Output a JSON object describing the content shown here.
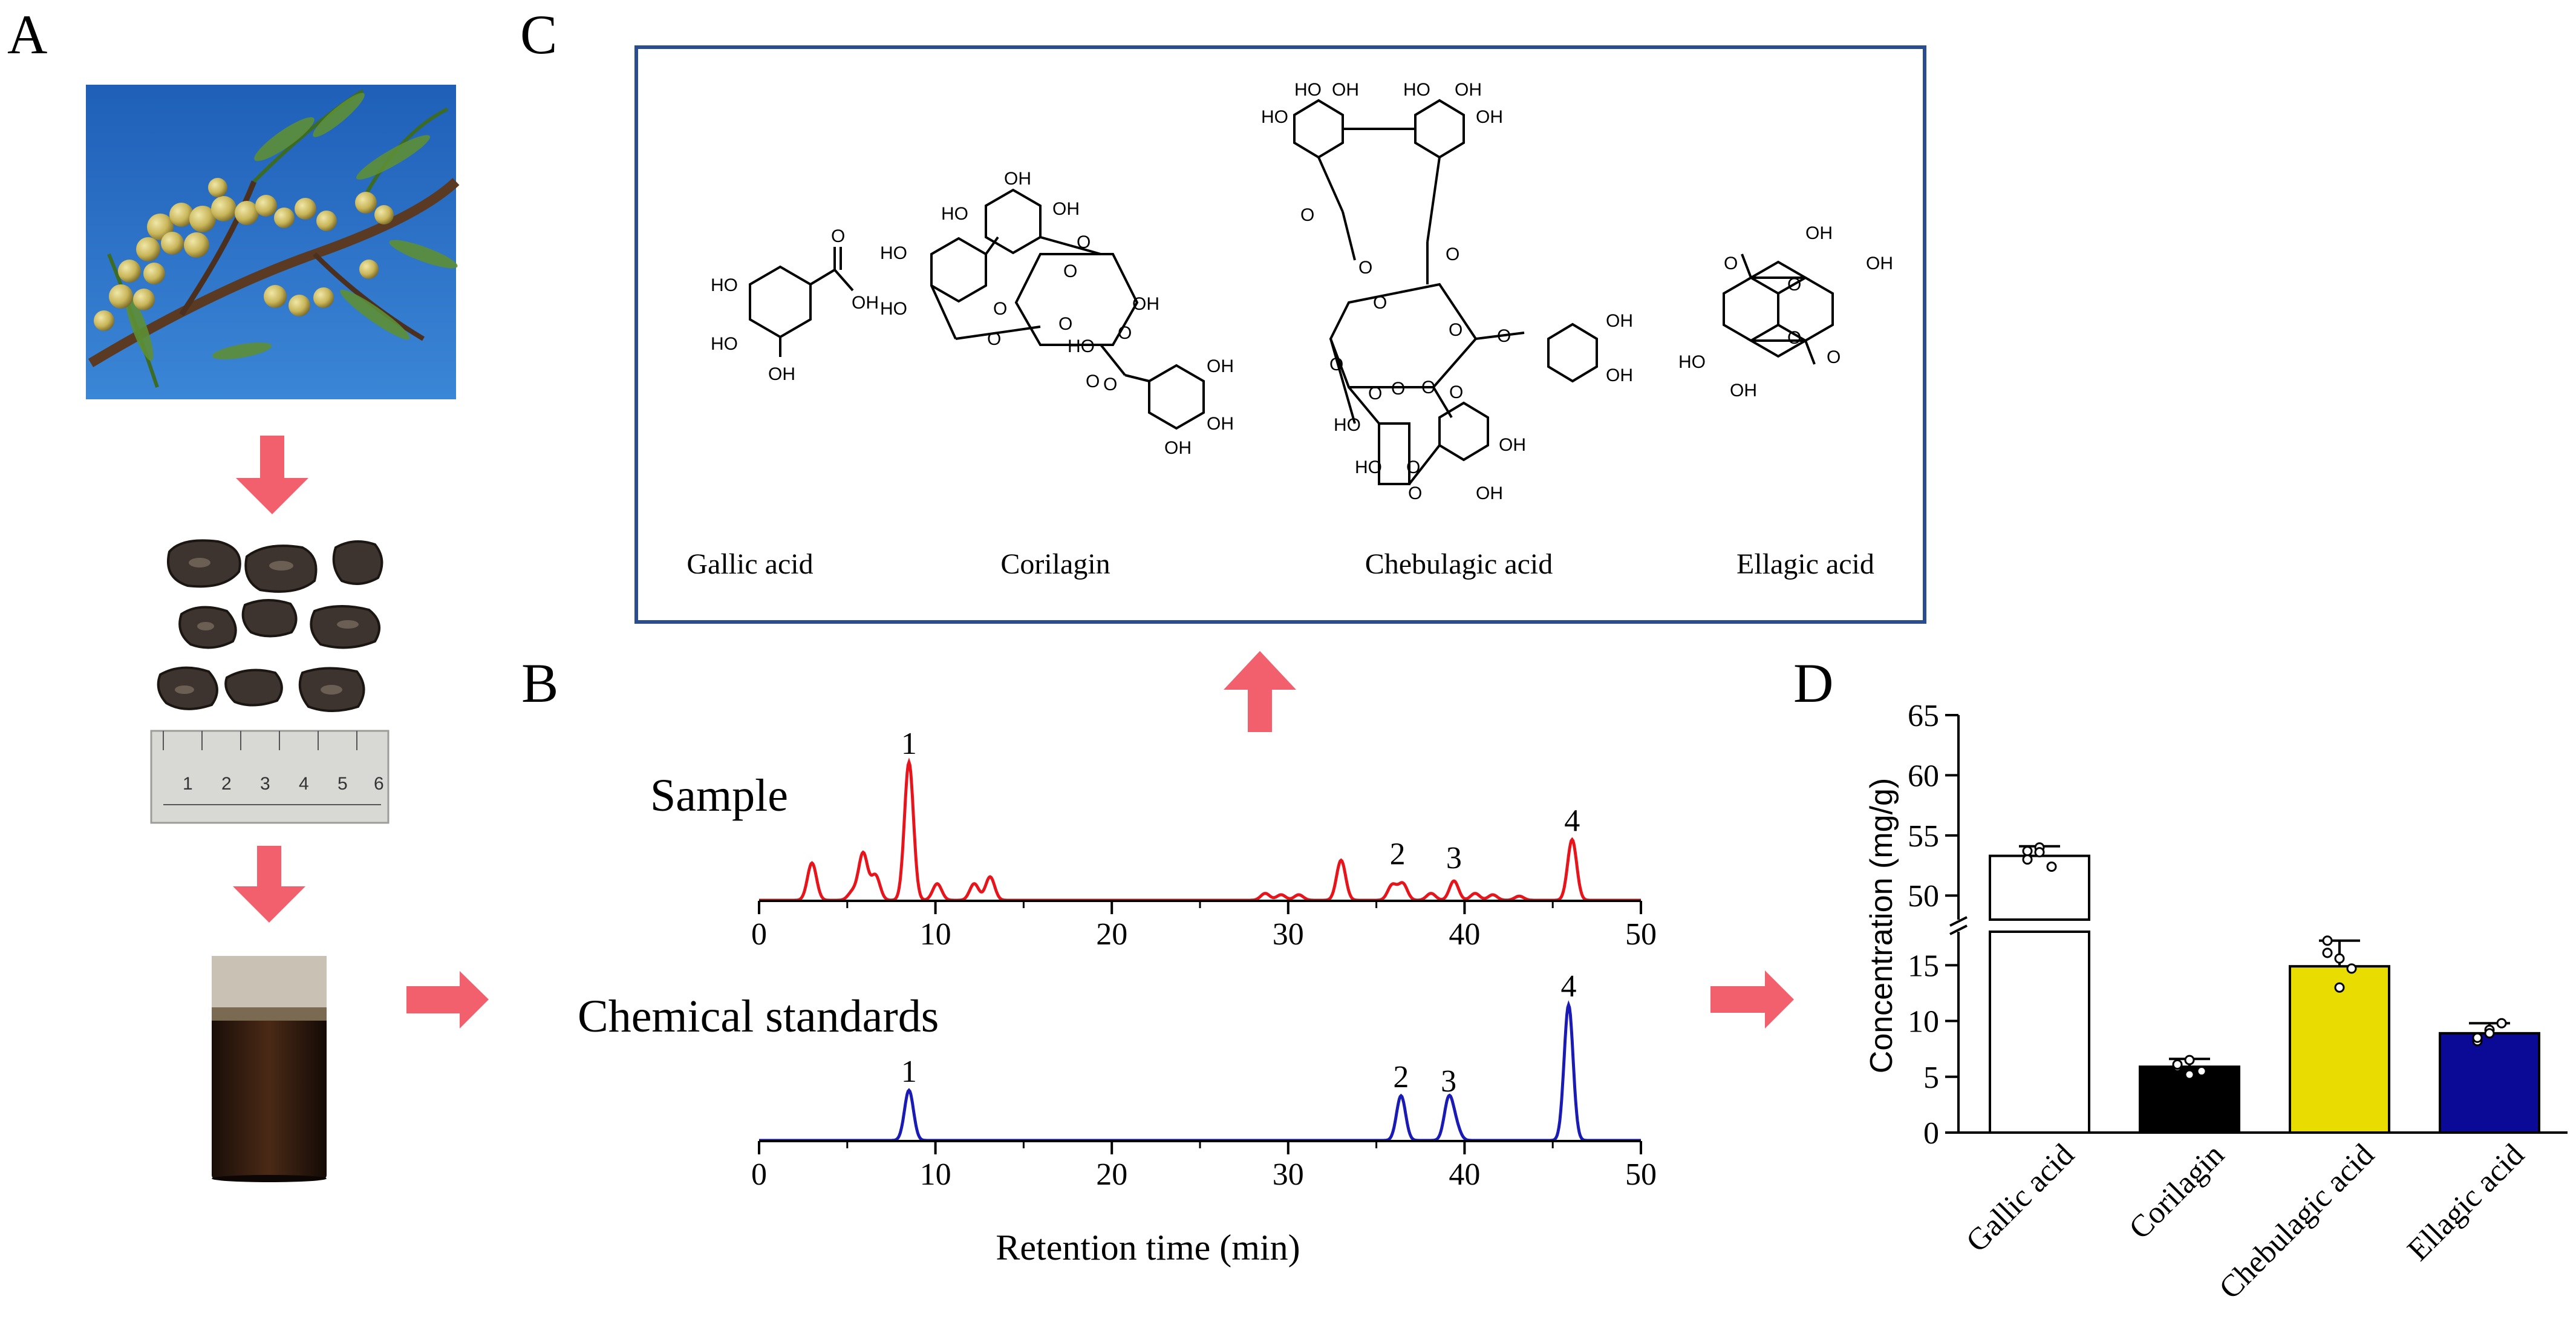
{
  "panels": {
    "a": {
      "label": "A"
    },
    "b": {
      "label": "B"
    },
    "c": {
      "label": "C"
    },
    "d": {
      "label": "D"
    }
  },
  "compounds": [
    {
      "name": "Gallic acid"
    },
    {
      "name": "Corilagin"
    },
    {
      "name": "Chebulagic acid"
    },
    {
      "name": "Ellagic acid"
    }
  ],
  "structure_labels": {
    "gallic": [
      "HO",
      "HO",
      "OH",
      "OH",
      "O"
    ],
    "corilagin": [
      "OH",
      "HO",
      "OH",
      "HO",
      "HO",
      "O",
      "O",
      "O",
      "O",
      "O",
      "OH",
      "HO",
      "O",
      "O",
      "O",
      "OH",
      "OH",
      "OH"
    ],
    "chebulagic": [
      "HO",
      "OH",
      "HO",
      "OH",
      "HO",
      "OH",
      "O",
      "O",
      "O",
      "O",
      "O",
      "O",
      "O",
      "O",
      "O",
      "HO",
      "O",
      "O",
      "OH",
      "OH",
      "HO",
      "O",
      "O",
      "OH",
      "OH"
    ],
    "ellagic": [
      "OH",
      "O",
      "OH",
      "O",
      "O",
      "HO",
      "O",
      "OH"
    ]
  },
  "chromatogram": {
    "sample": {
      "title": "Sample",
      "color": "#e8141c",
      "peaks": [
        {
          "time": 3.0,
          "height": 0.27
        },
        {
          "time": 5.3,
          "height": 0.06
        },
        {
          "time": 5.9,
          "height": 0.34
        },
        {
          "time": 6.6,
          "height": 0.18
        },
        {
          "time": 8.5,
          "height": 1.0
        },
        {
          "time": 10.1,
          "height": 0.12
        },
        {
          "time": 12.2,
          "height": 0.12
        },
        {
          "time": 13.1,
          "height": 0.17
        },
        {
          "time": 28.7,
          "height": 0.05
        },
        {
          "time": 29.6,
          "height": 0.04
        },
        {
          "time": 30.6,
          "height": 0.04
        },
        {
          "time": 33.0,
          "height": 0.29
        },
        {
          "time": 35.9,
          "height": 0.11
        },
        {
          "time": 36.5,
          "height": 0.12
        },
        {
          "time": 38.1,
          "height": 0.05
        },
        {
          "time": 39.4,
          "height": 0.14
        },
        {
          "time": 40.6,
          "height": 0.05
        },
        {
          "time": 41.6,
          "height": 0.04
        },
        {
          "time": 43.1,
          "height": 0.03
        },
        {
          "time": 46.1,
          "height": 0.44
        }
      ],
      "peak_labels": [
        {
          "text": "1",
          "time": 8.5,
          "height": 1.0
        },
        {
          "text": "2",
          "time": 36.2,
          "height": 0.2
        },
        {
          "text": "3",
          "time": 39.4,
          "height": 0.17
        },
        {
          "text": "4",
          "time": 46.1,
          "height": 0.44
        }
      ]
    },
    "standards": {
      "title": "Chemical standards",
      "color": "#1a1ab4",
      "peaks": [
        {
          "time": 8.5,
          "height": 0.37
        },
        {
          "time": 36.4,
          "height": 0.33
        },
        {
          "time": 39.1,
          "height": 0.3
        },
        {
          "time": 39.5,
          "height": 0.1
        },
        {
          "time": 45.9,
          "height": 1.0
        }
      ],
      "peak_labels": [
        {
          "text": "1",
          "time": 8.5,
          "height": 0.37
        },
        {
          "text": "2",
          "time": 36.4,
          "height": 0.33
        },
        {
          "text": "3",
          "time": 39.1,
          "height": 0.3
        },
        {
          "text": "4",
          "time": 45.9,
          "height": 1.0
        }
      ]
    },
    "x_ticks": [
      "0",
      "10",
      "20",
      "30",
      "40",
      "50"
    ],
    "x_label": "Retention time (min)",
    "x_range": [
      0,
      50
    ]
  },
  "chart_data": {
    "type": "bar",
    "ylabel": "Concentration (mg/g)",
    "ylim_lower": [
      0,
      18
    ],
    "ylim_upper": [
      48,
      65
    ],
    "y_ticks_lower": [
      "0",
      "5",
      "10",
      "15"
    ],
    "y_ticks_upper": [
      "50",
      "55",
      "60",
      "65"
    ],
    "categories": [
      "Gallic acid",
      "Corilagin",
      "Chebulagic acid",
      "Ellagic acid"
    ],
    "values": [
      53.3,
      5.9,
      14.9,
      8.9
    ],
    "errors": [
      0.8,
      0.7,
      2.3,
      0.9
    ],
    "colors": [
      "#ffffff",
      "#000000",
      "#e8dc00",
      "#0a0a96"
    ],
    "points": [
      [
        53.0,
        54.0,
        52.4,
        53.7,
        53.6
      ],
      [
        5.9,
        6.5,
        5.5,
        6.1,
        5.2
      ],
      [
        17.2,
        13.0,
        14.7,
        16.1,
        15.6
      ],
      [
        8.2,
        9.2,
        9.8,
        8.5,
        8.9
      ]
    ]
  },
  "colors": {
    "arrow": "#f2606e",
    "structure_box": "#2a4d8f"
  }
}
